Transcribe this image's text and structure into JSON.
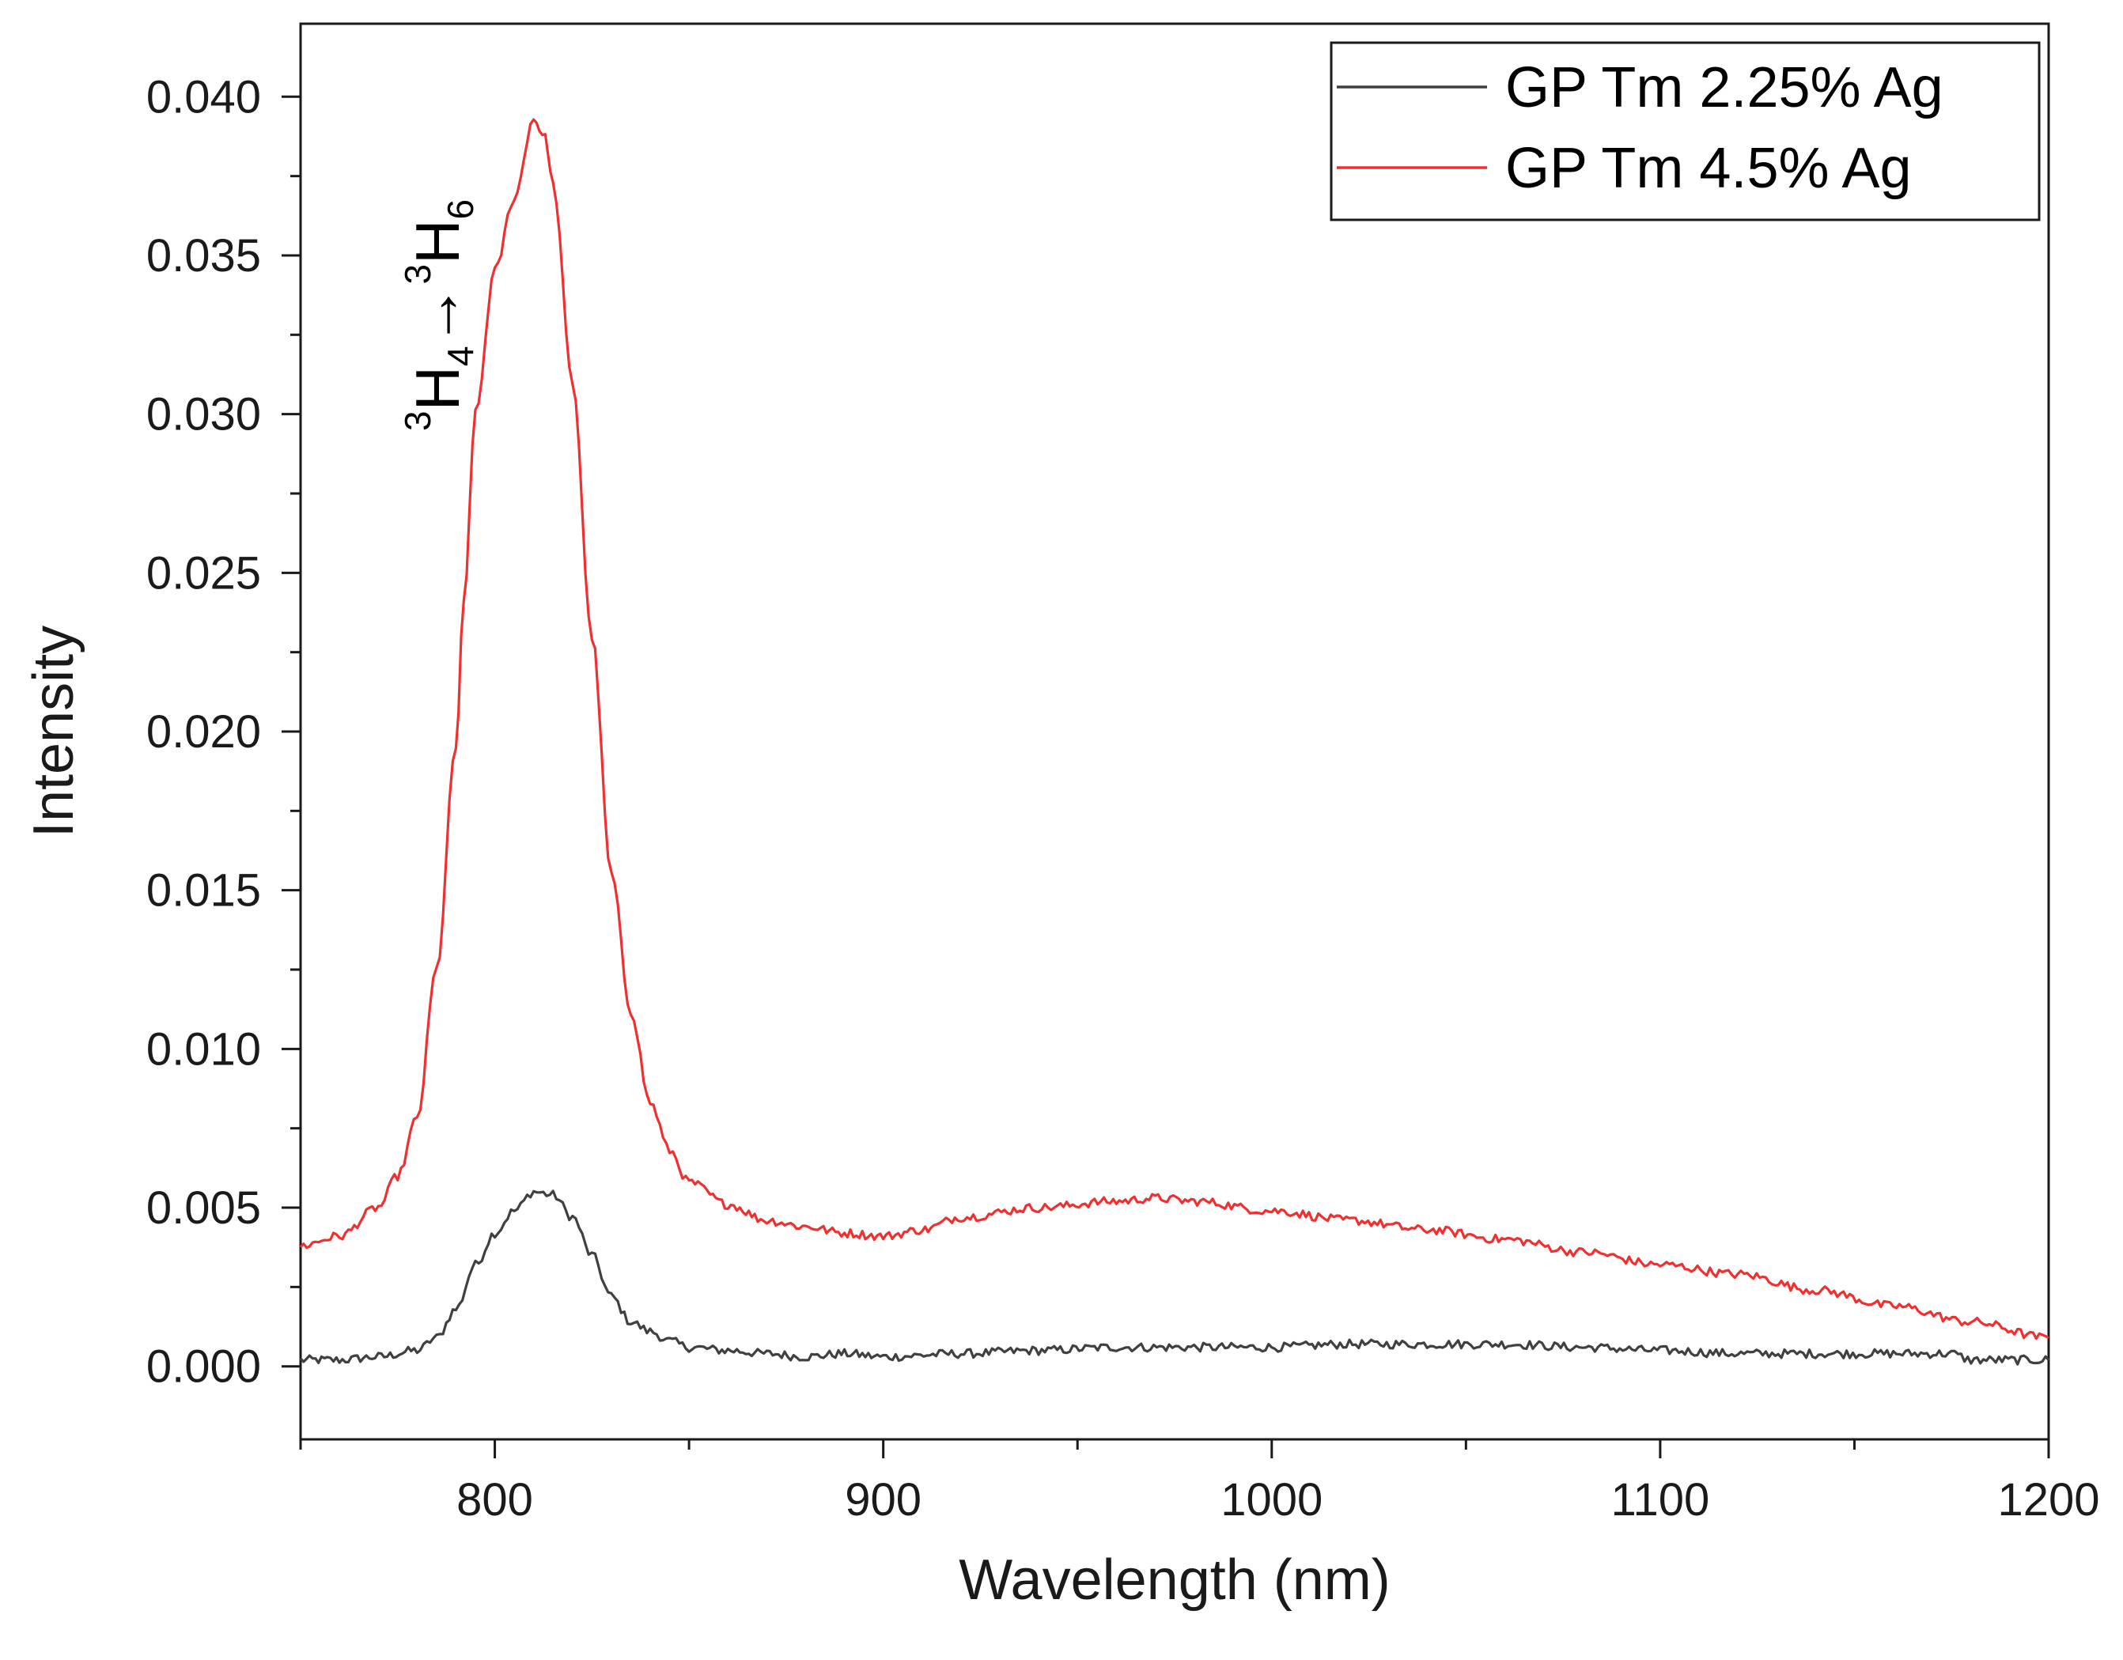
{
  "chart_data": {
    "type": "line",
    "title": "",
    "xlabel": "Wavelength (nm)",
    "ylabel": "Intensity",
    "xlim": [
      750,
      1200
    ],
    "ylim": [
      -0.0023,
      0.0423
    ],
    "x_ticks": [
      800,
      900,
      1000,
      1100,
      1200
    ],
    "x_tick_labels": [
      "800",
      "900",
      "1000",
      "1100",
      "1200"
    ],
    "y_ticks": [
      0.0,
      0.005,
      0.01,
      0.015,
      0.02,
      0.025,
      0.03,
      0.035,
      0.04
    ],
    "y_tick_labels": [
      "0.000",
      "0.005",
      "0.010",
      "0.015",
      "0.020",
      "0.025",
      "0.030",
      "0.035",
      "0.040"
    ],
    "grid": false,
    "legend_position": "top-right",
    "annotation": {
      "text_parts": [
        "3",
        "H",
        "4",
        "→",
        "3",
        "H",
        "6"
      ],
      "meaning": "superscript 3, H, subscript 4, arrow, superscript 3, H, subscript 6"
    },
    "series": [
      {
        "name": "GP Tm 2.25% Ag",
        "color": "#404040",
        "x": [
          750,
          760,
          770,
          780,
          785,
          790,
          795,
          800,
          805,
          810,
          815,
          820,
          825,
          830,
          835,
          840,
          845,
          850,
          860,
          870,
          880,
          890,
          900,
          920,
          940,
          960,
          980,
          1000,
          1020,
          1040,
          1060,
          1080,
          1100,
          1120,
          1140,
          1160,
          1175,
          1180,
          1200
        ],
        "y": [
          0.0002,
          0.0002,
          0.0003,
          0.0005,
          0.0009,
          0.0018,
          0.0032,
          0.0042,
          0.0049,
          0.0055,
          0.0054,
          0.0047,
          0.0035,
          0.0022,
          0.0014,
          0.0011,
          0.0008,
          0.0006,
          0.0005,
          0.0004,
          0.0003,
          0.0004,
          0.0003,
          0.0004,
          0.0005,
          0.0006,
          0.0006,
          0.0006,
          0.0007,
          0.0007,
          0.0007,
          0.0006,
          0.0005,
          0.0004,
          0.0004,
          0.0004,
          0.0004,
          0.0002,
          0.0002
        ]
      },
      {
        "name": "GP Tm 4.5% Ag",
        "color": "#f03030",
        "x": [
          750,
          760,
          770,
          775,
          780,
          785,
          790,
          792,
          795,
          800,
          805,
          810,
          813,
          815,
          820,
          825,
          830,
          835,
          840,
          845,
          850,
          860,
          870,
          880,
          890,
          900,
          910,
          920,
          940,
          960,
          970,
          980,
          1000,
          1020,
          1040,
          1060,
          1080,
          1100,
          1120,
          1140,
          1160,
          1180,
          1200
        ],
        "y": [
          0.0038,
          0.0041,
          0.005,
          0.006,
          0.0078,
          0.0125,
          0.0195,
          0.024,
          0.03,
          0.0345,
          0.0368,
          0.0393,
          0.0387,
          0.0372,
          0.031,
          0.023,
          0.0155,
          0.0112,
          0.0083,
          0.0068,
          0.0058,
          0.0051,
          0.0046,
          0.0044,
          0.0042,
          0.0041,
          0.0043,
          0.0047,
          0.005,
          0.0052,
          0.0053,
          0.0052,
          0.0049,
          0.0046,
          0.0043,
          0.004,
          0.0036,
          0.0032,
          0.0029,
          0.0024,
          0.0019,
          0.0014,
          0.0009
        ]
      }
    ]
  }
}
